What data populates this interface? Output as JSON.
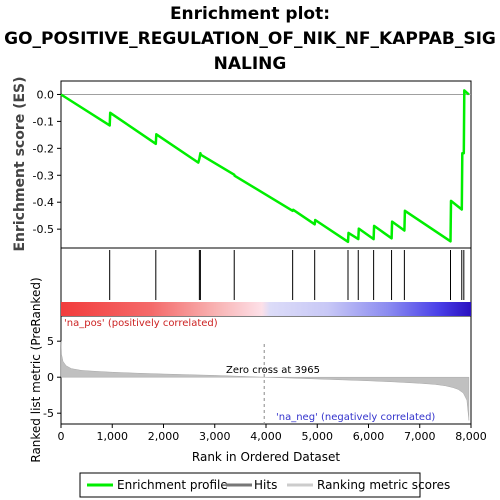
{
  "title_lines": [
    "Enrichment plot:",
    "GO_POSITIVE_REGULATION_OF_NIK_NF_KAPPAB_SIG",
    "NALING"
  ],
  "colors": {
    "enrichment": "#00ee00",
    "hits": "#000000",
    "metric": "#c0c0c0",
    "pos_label": "#cc2222",
    "neg_label": "#3333cc",
    "zero_line": "#a0a0a0"
  },
  "chart_data": [
    {
      "type": "line",
      "name": "enrichment-profile",
      "ylabel": "Enrichment score (ES)",
      "xlim": [
        0,
        8000
      ],
      "ylim": [
        -0.57,
        0.05
      ],
      "yticks": [
        0.0,
        -0.1,
        -0.2,
        -0.3,
        -0.4,
        -0.5
      ],
      "ytick_labels": [
        "0.0",
        "-0.1",
        "-0.2",
        "-0.3",
        "-0.4",
        "-0.5"
      ],
      "x": [
        0,
        950,
        960,
        1850,
        1860,
        2680,
        2700,
        2710,
        2720,
        2730,
        3380,
        3390,
        4520,
        4530,
        4950,
        4960,
        5600,
        5610,
        5800,
        5810,
        6100,
        6110,
        6450,
        6460,
        6700,
        6710,
        7600,
        7610,
        7820,
        7830,
        7860,
        7870,
        7960
      ],
      "y": [
        0.0,
        -0.115,
        -0.068,
        -0.183,
        -0.148,
        -0.253,
        -0.238,
        -0.228,
        -0.218,
        -0.224,
        -0.298,
        -0.302,
        -0.432,
        -0.428,
        -0.482,
        -0.466,
        -0.547,
        -0.514,
        -0.537,
        -0.498,
        -0.537,
        -0.488,
        -0.534,
        -0.472,
        -0.505,
        -0.432,
        -0.545,
        -0.395,
        -0.427,
        -0.218,
        -0.218,
        0.015,
        0.0
      ]
    },
    {
      "type": "bar",
      "name": "hits",
      "legend": "Hits",
      "x": [
        950,
        1850,
        2700,
        2720,
        3380,
        4520,
        4950,
        5600,
        5800,
        6100,
        6450,
        6700,
        7600,
        7820,
        7860
      ]
    },
    {
      "type": "area",
      "name": "ranked-list-metric",
      "xlabel": "Rank in Ordered Dataset",
      "ylabel": "Ranked list metric (PreRanked)",
      "xlim": [
        0,
        8000
      ],
      "ylim": [
        -6.5,
        8.5
      ],
      "yticks": [
        5,
        0,
        -5
      ],
      "ytick_labels": [
        "5",
        "0",
        "-5"
      ],
      "xticks": [
        0,
        1000,
        2000,
        3000,
        4000,
        5000,
        6000,
        7000,
        8000
      ],
      "xtick_labels": [
        "0",
        "1,000",
        "2,000",
        "3,000",
        "4,000",
        "5,000",
        "6,000",
        "7,000",
        "8,000"
      ],
      "x": [
        0,
        10,
        40,
        100,
        200,
        400,
        700,
        1000,
        1500,
        2000,
        2500,
        3000,
        3500,
        3965,
        4500,
        5000,
        5500,
        6000,
        6500,
        7000,
        7300,
        7500,
        7650,
        7750,
        7850,
        7920,
        7960
      ],
      "y": [
        5.0,
        3.2,
        2.2,
        1.6,
        1.2,
        0.95,
        0.8,
        0.7,
        0.55,
        0.45,
        0.35,
        0.25,
        0.12,
        0.0,
        -0.12,
        -0.25,
        -0.38,
        -0.5,
        -0.65,
        -0.85,
        -1.0,
        -1.2,
        -1.45,
        -1.7,
        -2.2,
        -3.2,
        -6.0
      ],
      "annotations": {
        "zero_cross": "Zero cross at 3965",
        "pos": "'na_pos' (positively correlated)",
        "neg": "'na_neg' (negatively correlated)"
      }
    }
  ],
  "legend": {
    "enrichment": "Enrichment profile",
    "hits": "Hits",
    "metric": "Ranking metric scores"
  }
}
